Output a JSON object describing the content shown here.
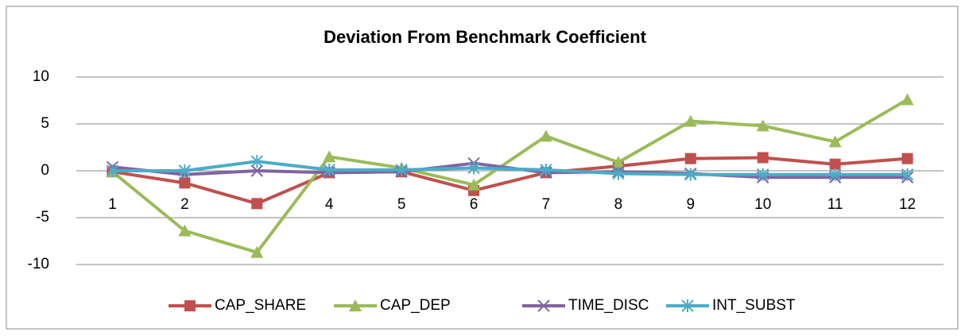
{
  "chart_data": {
    "type": "line",
    "title": "Deviation From Benchmark Coefficient",
    "categories": [
      "1",
      "2",
      "3",
      "4",
      "5",
      "6",
      "7",
      "8",
      "9",
      "10",
      "11",
      "12"
    ],
    "series": [
      {
        "name": "CAP_SHARE",
        "color": "#c0504d",
        "marker": "square",
        "values": [
          -0.1,
          -1.3,
          -3.5,
          -0.2,
          -0.1,
          -2.1,
          -0.2,
          0.5,
          1.3,
          1.4,
          0.7,
          1.3
        ]
      },
      {
        "name": "CAP_DEP",
        "color": "#9bbb59",
        "marker": "triangle",
        "values": [
          -0.1,
          -6.4,
          -8.7,
          1.5,
          0.3,
          -1.5,
          3.7,
          0.9,
          5.3,
          4.8,
          3.1,
          7.6
        ]
      },
      {
        "name": "TIME_DISC",
        "color": "#8064a2",
        "marker": "x",
        "values": [
          0.4,
          -0.4,
          0,
          -0.2,
          -0.1,
          0.8,
          -0.2,
          -0.1,
          -0.3,
          -0.7,
          -0.7,
          -0.7
        ]
      },
      {
        "name": "INT_SUBST",
        "color": "#4bacc6",
        "marker": "star",
        "values": [
          0,
          0,
          1.0,
          0.1,
          0.1,
          0.3,
          0.1,
          -0.3,
          -0.4,
          -0.4,
          -0.4,
          -0.4
        ]
      }
    ],
    "ylim": [
      -10,
      10
    ],
    "yticks": [
      -10,
      -5,
      0,
      5,
      10
    ],
    "grid": true,
    "legend": "bottom"
  }
}
